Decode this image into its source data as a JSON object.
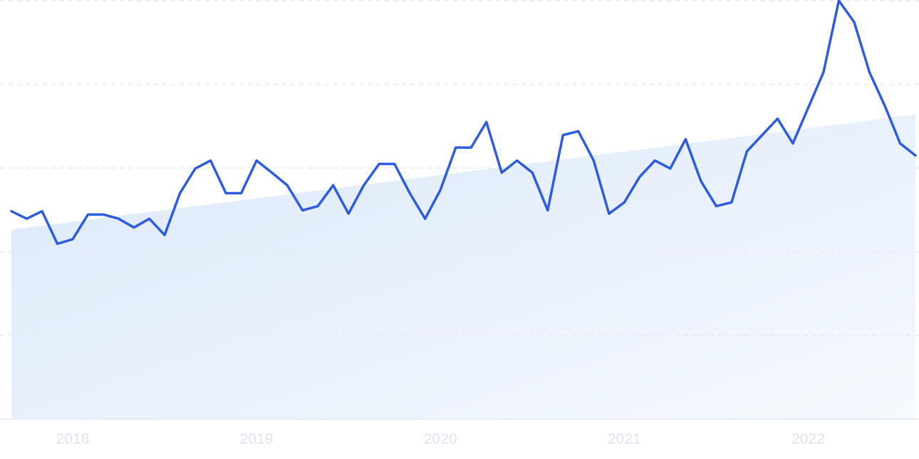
{
  "chart_data": {
    "type": "line",
    "categories": [
      null,
      null,
      null,
      null,
      "2018",
      null,
      null,
      null,
      null,
      null,
      null,
      null,
      null,
      null,
      null,
      null,
      "2019",
      null,
      null,
      null,
      null,
      null,
      null,
      null,
      null,
      null,
      null,
      null,
      "2020",
      null,
      null,
      null,
      null,
      null,
      null,
      null,
      null,
      null,
      null,
      null,
      "2021",
      null,
      null,
      null,
      null,
      null,
      null,
      null,
      null,
      null,
      null,
      null,
      "2022",
      null,
      null,
      null,
      null,
      null,
      null,
      null
    ],
    "series": [
      {
        "color": "#2e5ce0",
        "values": [
          49.7,
          47.9,
          49.7,
          41.9,
          43.0,
          48.9,
          48.9,
          47.9,
          45.8,
          47.9,
          44.0,
          54.0,
          59.9,
          61.8,
          54.0,
          54.0,
          61.8,
          58.9,
          55.9,
          49.9,
          50.9,
          55.9,
          49.1,
          55.9,
          61.0,
          61.0,
          54.0,
          47.9,
          54.8,
          64.9,
          64.9,
          71.0,
          58.9,
          61.8,
          58.9,
          49.9,
          67.9,
          68.8,
          61.8,
          49.1,
          51.8,
          57.9,
          61.8,
          59.9,
          66.9,
          56.9,
          50.9,
          51.8,
          64.0,
          67.9,
          71.8,
          65.9,
          74.4,
          82.9,
          100,
          94.9,
          82.9,
          74.9,
          65.9,
          63.0
        ]
      }
    ],
    "trend_values": [
      45.3,
      72.8
    ],
    "trend_color": "#dbe8fa",
    "ylim": [
      0,
      100
    ],
    "yticks": [
      0,
      20,
      40,
      60,
      80,
      100
    ],
    "grid": true
  }
}
